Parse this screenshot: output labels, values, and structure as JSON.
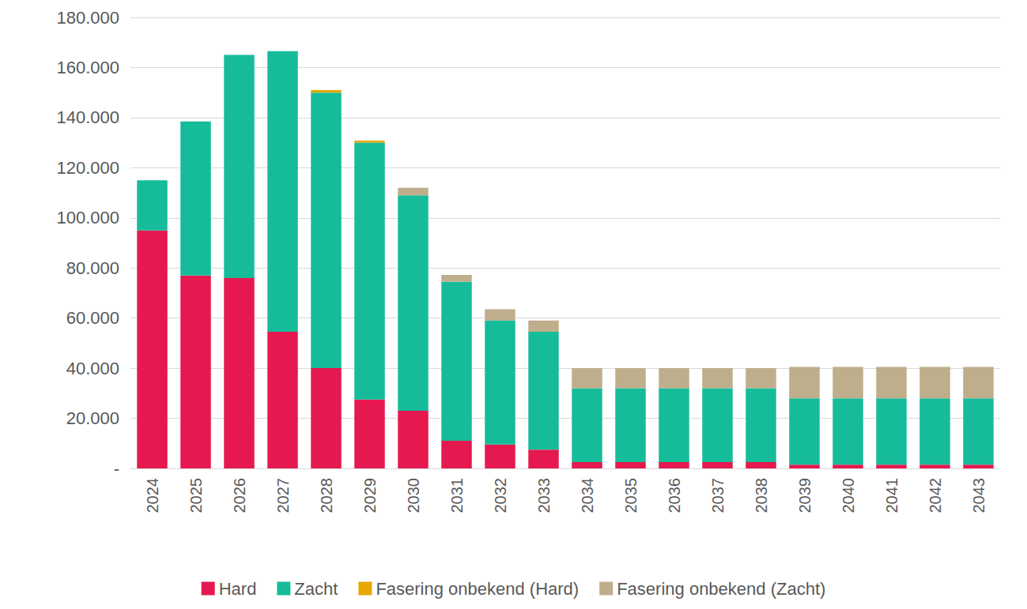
{
  "chart_data": {
    "type": "bar",
    "stacked": true,
    "grid": true,
    "legend": "bottom",
    "categories": [
      "2024",
      "2025",
      "2026",
      "2027",
      "2028",
      "2029",
      "2030",
      "2031",
      "2032",
      "2033",
      "2034",
      "2035",
      "2036",
      "2037",
      "2038",
      "2039",
      "2040",
      "2041",
      "2042",
      "2043"
    ],
    "ylim": [
      0,
      180000
    ],
    "yticks": [
      {
        "value": 0,
        "label": "-"
      },
      {
        "value": 20000,
        "label": "20.000"
      },
      {
        "value": 40000,
        "label": "40.000"
      },
      {
        "value": 60000,
        "label": "60.000"
      },
      {
        "value": 80000,
        "label": "80.000"
      },
      {
        "value": 100000,
        "label": "100.000"
      },
      {
        "value": 120000,
        "label": "120.000"
      },
      {
        "value": 140000,
        "label": "140.000"
      },
      {
        "value": 160000,
        "label": "160.000"
      },
      {
        "value": 180000,
        "label": "180.000"
      }
    ],
    "series": [
      {
        "name": "Hard",
        "color": "#e5194f",
        "values": [
          95000,
          77000,
          76000,
          54500,
          40000,
          27500,
          23000,
          11000,
          9500,
          7500,
          2500,
          2500,
          2500,
          2500,
          2500,
          1500,
          1500,
          1500,
          1500,
          1500
        ]
      },
      {
        "name": "Zacht",
        "color": "#16bc9a",
        "values": [
          20000,
          61500,
          89000,
          112000,
          110000,
          102500,
          86000,
          63500,
          49500,
          47000,
          29500,
          29500,
          29500,
          29500,
          29500,
          26500,
          26500,
          26500,
          26500,
          26500
        ]
      },
      {
        "name": "Fasering onbekend (Hard)",
        "color": "#e6a800",
        "values": [
          0,
          0,
          0,
          0,
          1000,
          800,
          0,
          0,
          0,
          0,
          0,
          0,
          0,
          0,
          0,
          0,
          0,
          0,
          0,
          0
        ]
      },
      {
        "name": "Fasering onbekend (Zacht)",
        "color": "#bfae8c",
        "values": [
          0,
          0,
          0,
          0,
          0,
          0,
          3000,
          2700,
          4500,
          4500,
          8000,
          8000,
          8000,
          8000,
          8000,
          12500,
          12500,
          12500,
          12500,
          12500
        ]
      }
    ]
  }
}
